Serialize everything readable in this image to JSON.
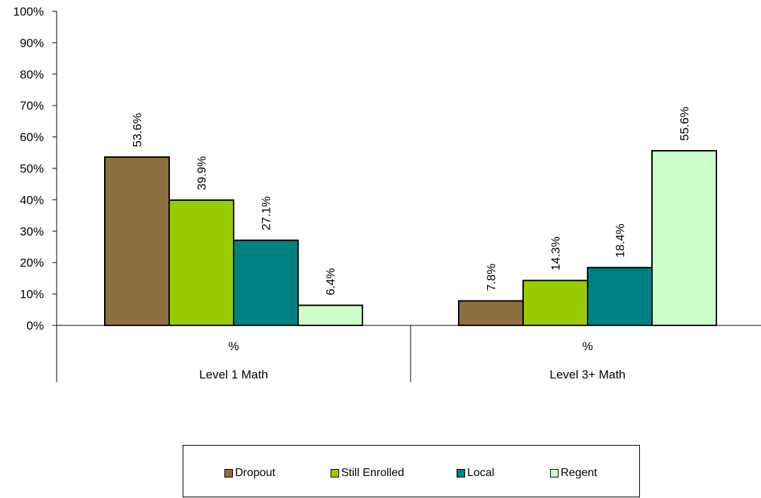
{
  "chart_data": {
    "type": "bar",
    "groups": [
      {
        "label": "Level 1 Math",
        "sublabel": "%"
      },
      {
        "label": "Level 3+ Math",
        "sublabel": "%"
      }
    ],
    "series": [
      {
        "name": "Dropout",
        "color": "#8B6F3E",
        "values": [
          53.6,
          7.8
        ],
        "labels": [
          "53.6%",
          "7.8%"
        ]
      },
      {
        "name": "Still Enrolled",
        "color": "#99CC00",
        "values": [
          39.9,
          14.3
        ],
        "labels": [
          "39.9%",
          "14.3%"
        ]
      },
      {
        "name": "Local",
        "color": "#008080",
        "values": [
          27.1,
          18.4
        ],
        "labels": [
          "27.1%",
          "18.4%"
        ]
      },
      {
        "name": "Regent",
        "color": "#CCFFCC",
        "values": [
          6.4,
          55.6
        ],
        "labels": [
          "6.4%",
          "55.6%"
        ]
      }
    ],
    "ylim": [
      0,
      100
    ],
    "yticks": [
      "0%",
      "10%",
      "20%",
      "30%",
      "40%",
      "50%",
      "60%",
      "70%",
      "80%",
      "90%",
      "100%"
    ],
    "grid": false,
    "legend_position": "bottom"
  }
}
